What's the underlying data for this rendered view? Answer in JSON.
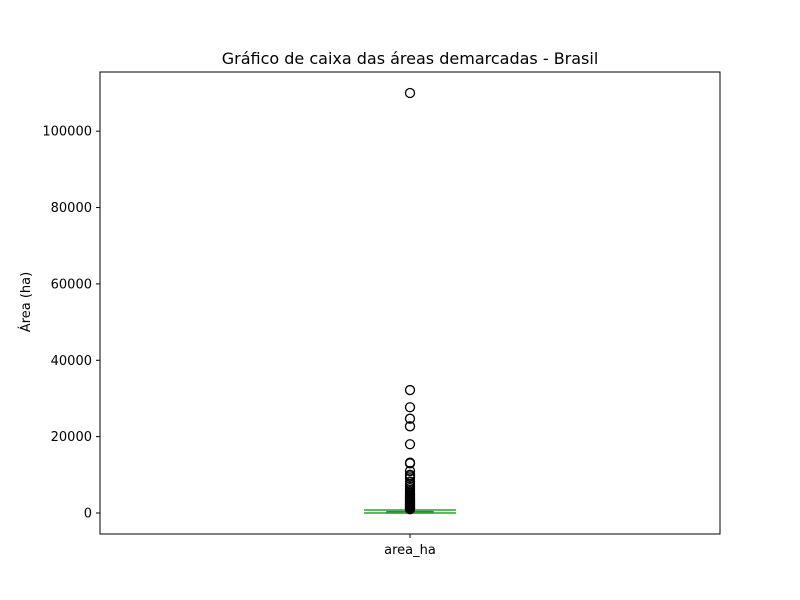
{
  "chart_data": {
    "type": "box",
    "title": "Gráfico de caixa das áreas demarcadas - Brasil",
    "xlabel": "",
    "ylabel": "Área (ha)",
    "categories": [
      "area_ha"
    ],
    "ylim": [
      -5500,
      115500
    ],
    "yticks": [
      0,
      20000,
      40000,
      60000,
      80000,
      100000
    ],
    "ytick_labels": [
      "0",
      "20000",
      "40000",
      "60000",
      "80000",
      "100000"
    ],
    "grid": false,
    "box": {
      "q1": 40,
      "median": 100,
      "q3": 350,
      "whisker_low": 0,
      "whisker_high": 800
    },
    "outliers": [
      110000,
      32200,
      27700,
      24700,
      22700,
      18000,
      13200,
      13000,
      11000,
      10000,
      9600,
      9100,
      8200,
      7600,
      7000,
      6500,
      6000,
      5600,
      5200,
      4900,
      4600,
      4300,
      4000,
      3700,
      3450,
      3200,
      3000,
      2800,
      2600,
      2400,
      2200,
      2000,
      1800,
      1600,
      1400,
      1200,
      1000
    ],
    "colors": {
      "box": "#1f77b4",
      "median": "#2ca02c",
      "whisker": "#2ca02c",
      "outlier_edge": "#000000"
    }
  }
}
